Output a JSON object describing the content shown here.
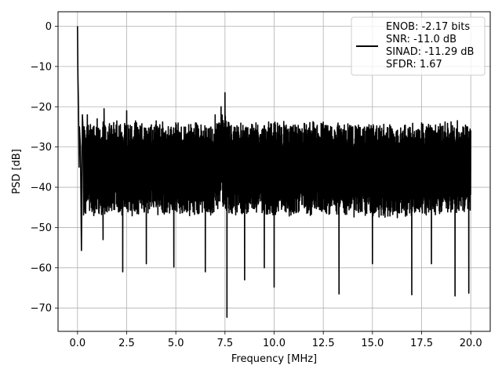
{
  "chart_data": {
    "type": "line",
    "title": "",
    "xlabel": "Frequency [MHz]",
    "ylabel": "PSD [dB]",
    "xlim": [
      -0.99,
      20.99
    ],
    "ylim": [
      -75.8,
      3.6
    ],
    "xticks": [
      0.0,
      2.5,
      5.0,
      7.5,
      10.0,
      12.5,
      15.0,
      17.5,
      20.0
    ],
    "xtick_labels": [
      "0.0",
      "2.5",
      "5.0",
      "7.5",
      "10.0",
      "12.5",
      "15.0",
      "17.5",
      "20.0"
    ],
    "yticks": [
      0,
      -10,
      -20,
      -30,
      -40,
      -50,
      -60,
      -70
    ],
    "ytick_labels": [
      "0",
      "−10",
      "−20",
      "−30",
      "−40",
      "−50",
      "−60",
      "−70"
    ],
    "grid": true,
    "legend_position": "top-right",
    "series": [
      {
        "name": "ENOB: -2.17 bits\nSNR: -11.0 dB\nSINAD: -11.29 dB\nSFDR: 1.67",
        "color": "#000000",
        "x_range_mhz": [
          0,
          20
        ],
        "noise_floor_db": {
          "upper_peaks_approx": -24,
          "lower_troughs_approx": -48
        },
        "points": [
          [
            0.0,
            0.0
          ],
          [
            0.02,
            -12.0
          ],
          [
            0.05,
            -20.0
          ],
          [
            0.08,
            -35.0
          ],
          [
            0.1,
            -25.0
          ],
          [
            0.15,
            -30.0
          ],
          [
            0.2,
            -55.7
          ],
          [
            0.25,
            -22.0
          ],
          [
            0.5,
            -22.0
          ],
          [
            1.0,
            -23.0
          ],
          [
            1.3,
            -53.0
          ],
          [
            1.35,
            -20.5
          ],
          [
            2.0,
            -23.5
          ],
          [
            2.3,
            -61.0
          ],
          [
            2.5,
            -21.0
          ],
          [
            3.0,
            -24.0
          ],
          [
            3.5,
            -59.0
          ],
          [
            4.0,
            -23.5
          ],
          [
            4.9,
            -59.8
          ],
          [
            5.0,
            -24.0
          ],
          [
            6.0,
            -24.0
          ],
          [
            6.5,
            -61.0
          ],
          [
            7.0,
            -22.0
          ],
          [
            7.3,
            -20.0
          ],
          [
            7.5,
            -16.5
          ],
          [
            7.6,
            -72.3
          ],
          [
            7.7,
            -24.0
          ],
          [
            8.5,
            -63.0
          ],
          [
            9.0,
            -26.0
          ],
          [
            9.5,
            -60.0
          ],
          [
            10.0,
            -64.8
          ],
          [
            10.5,
            -25.0
          ],
          [
            12.0,
            -26.0
          ],
          [
            13.3,
            -66.5
          ],
          [
            14.0,
            -25.0
          ],
          [
            15.0,
            -59.0
          ],
          [
            16.0,
            -25.5
          ],
          [
            17.0,
            -66.7
          ],
          [
            17.5,
            -24.0
          ],
          [
            18.0,
            -59.0
          ],
          [
            19.0,
            -25.0
          ],
          [
            19.2,
            -67.0
          ],
          [
            19.6,
            -25.0
          ],
          [
            19.9,
            -66.3
          ],
          [
            20.0,
            -26.0
          ]
        ]
      }
    ]
  }
}
